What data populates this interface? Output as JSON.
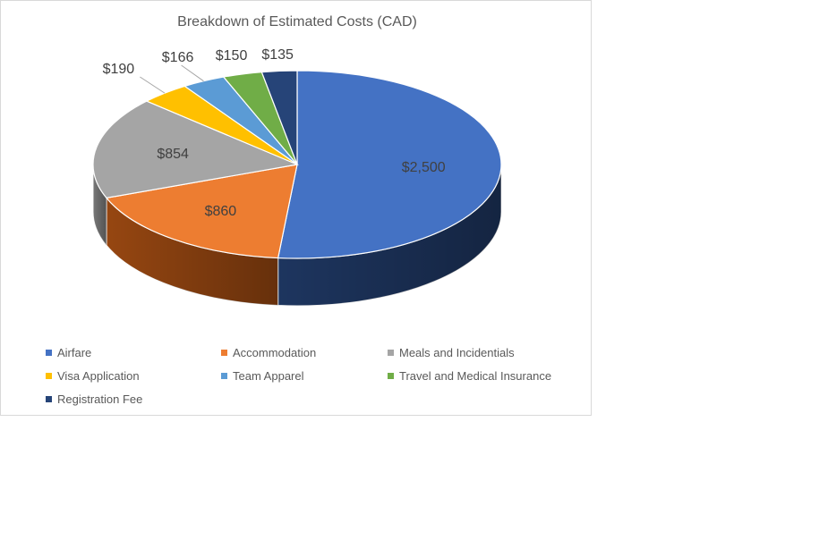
{
  "chart_data": {
    "type": "pie",
    "title": "Breakdown of Estimated Costs (CAD)",
    "categories": [
      "Airfare",
      "Accommodation",
      "Meals and Incidentials",
      "Visa Application",
      "Team Apparel",
      "Travel and Medical Insurance",
      "Registration Fee"
    ],
    "values": [
      2500,
      860,
      854,
      190,
      166,
      150,
      135
    ],
    "data_labels": [
      "$2,500",
      "$860",
      "$854",
      "$190",
      "$166",
      "$150",
      "$135"
    ],
    "colors": [
      "#4472C4",
      "#ED7D31",
      "#A5A5A5",
      "#FFC000",
      "#5B9BD5",
      "#70AD47",
      "#264478"
    ],
    "side_colors": [
      "#1F3864",
      "#9E4A12",
      "#7F7F7F",
      "#BF9000",
      "#2E75B6",
      "#4E7C31",
      "#172A4C"
    ],
    "legend_position": "bottom",
    "style": "3d"
  }
}
